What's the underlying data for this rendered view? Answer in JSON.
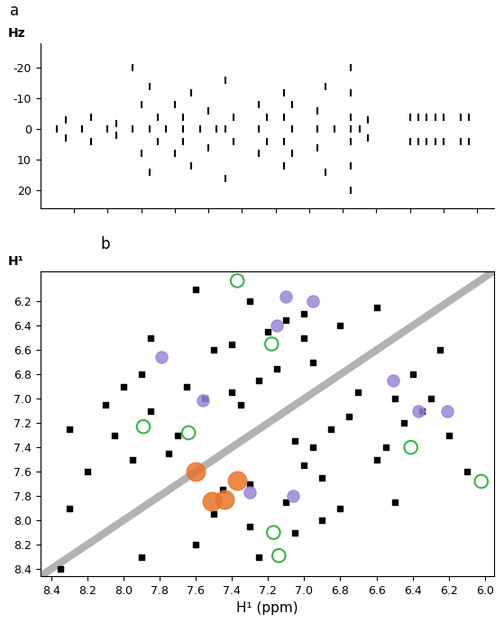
{
  "chart_data": [
    {
      "type": "scatter",
      "title": "a",
      "ylabel": "Hz",
      "xlim": [
        8.6,
        5.9
      ],
      "xticks": [
        8.4,
        8.2,
        8.0,
        7.8,
        7.6,
        7.4,
        7.2,
        7.0,
        6.8,
        6.6,
        6.4,
        6.2,
        6.0
      ],
      "ylim": [
        26,
        -28
      ],
      "yticks": [
        -20,
        -10,
        0,
        10,
        20
      ],
      "tick_labels": "y",
      "series": [
        {
          "type": "scatter",
          "color": "#000000",
          "marker": "dash",
          "x": [
            8.5,
            8.45,
            8.45,
            8.35,
            8.3,
            8.3,
            8.2,
            8.15,
            8.15,
            8.05,
            8.05,
            8.0,
            8.0,
            7.95,
            7.95,
            7.95,
            7.9,
            7.9,
            7.85,
            7.8,
            7.8,
            7.75,
            7.75,
            7.75,
            7.7,
            7.7,
            7.65,
            7.6,
            7.6,
            7.55,
            7.5,
            7.5,
            7.5,
            7.45,
            7.45,
            7.3,
            7.3,
            7.3,
            7.25,
            7.25,
            7.15,
            7.15,
            7.15,
            7.15,
            7.1,
            7.1,
            7.1,
            6.95,
            6.95,
            6.95,
            6.9,
            6.9,
            6.85,
            6.75,
            6.75,
            6.75,
            6.75,
            6.75,
            6.75,
            6.75,
            6.7,
            6.65,
            6.65,
            6.4,
            6.4,
            6.35,
            6.35,
            6.3,
            6.3,
            6.25,
            6.25,
            6.2,
            6.2,
            6.1,
            6.1,
            6.05,
            6.05
          ],
          "values": [
            0,
            -3,
            3,
            0,
            -4,
            4,
            0,
            -2,
            2,
            -20,
            0,
            -8,
            8,
            0,
            -14,
            14,
            -4,
            4,
            0,
            -8,
            8,
            0,
            -4,
            4,
            -12,
            12,
            0,
            -6,
            6,
            0,
            -16,
            0,
            16,
            -4,
            4,
            -8,
            0,
            8,
            -4,
            4,
            -12,
            -4,
            4,
            12,
            0,
            -8,
            8,
            0,
            -6,
            6,
            -14,
            14,
            0,
            -20,
            -12,
            -4,
            0,
            4,
            12,
            20,
            0,
            -3,
            3,
            -4,
            4,
            -4,
            4,
            -4,
            4,
            -4,
            4,
            -4,
            4,
            -4,
            4,
            -4,
            4
          ]
        }
      ]
    },
    {
      "type": "scatter",
      "title": "b",
      "ylabel": "H¹",
      "xlabel": "H¹ (ppm)",
      "xlim": [
        8.46,
        5.95
      ],
      "xticks": [
        8.4,
        8.2,
        8.0,
        7.8,
        7.6,
        7.4,
        7.2,
        7.0,
        6.8,
        6.6,
        6.4,
        6.2,
        6.0
      ],
      "ylim": [
        8.46,
        5.95
      ],
      "yticks": [
        6.2,
        6.4,
        6.6,
        6.8,
        7.0,
        7.2,
        7.4,
        7.6,
        7.8,
        8.0,
        8.2,
        8.4
      ],
      "series": [
        {
          "type": "line",
          "color": "#808080",
          "x": [
            8.46,
            5.95
          ],
          "values": [
            8.46,
            5.95
          ]
        },
        {
          "type": "scatter",
          "color": "#000000",
          "marker": "square",
          "x": [
            8.2,
            7.6,
            8.05,
            7.3,
            7.9,
            6.8,
            7.85,
            7.1,
            7.7,
            7.3,
            7.65,
            6.9,
            7.55,
            7.0,
            7.5,
            6.6,
            7.45,
            7.75,
            7.4,
            6.95,
            7.35,
            7.05,
            7.25,
            6.85,
            7.2,
            6.45,
            7.15,
            6.75,
            7.0,
            6.5,
            6.95,
            6.7,
            6.8,
            6.4,
            6.6,
            6.25,
            8.3,
            7.9,
            8.1,
            7.05,
            7.95,
            7.5,
            7.25,
            8.3,
            6.1,
            7.6,
            6.2,
            7.3,
            6.9,
            8.0,
            6.5,
            7.85,
            7.1,
            6.35,
            6.3,
            7.0,
            8.35,
            7.4,
            6.55
          ],
          "values": [
            7.6,
            8.2,
            7.3,
            8.05,
            6.8,
            7.9,
            7.1,
            7.85,
            7.3,
            7.7,
            6.9,
            7.65,
            7.0,
            7.55,
            6.6,
            7.5,
            7.75,
            7.45,
            6.95,
            7.4,
            7.05,
            7.35,
            6.85,
            7.25,
            6.45,
            7.2,
            6.75,
            7.15,
            6.5,
            7.0,
            6.7,
            6.95,
            6.4,
            6.8,
            6.25,
            6.6,
            7.9,
            8.3,
            7.05,
            8.1,
            7.5,
            7.95,
            8.3,
            7.25,
            7.6,
            6.1,
            7.3,
            6.2,
            8.0,
            6.9,
            7.85,
            6.5,
            6.35,
            7.1,
            7.0,
            6.3,
            8.4,
            6.55,
            7.4
          ]
        },
        {
          "type": "scatter",
          "color": "#9b86d6",
          "marker": "circle",
          "x": [
            7.1,
            6.95,
            7.15,
            7.79,
            7.56,
            6.51,
            6.37,
            6.21,
            7.06,
            7.3
          ],
          "values": [
            6.16,
            6.2,
            6.4,
            6.66,
            7.01,
            6.85,
            7.1,
            7.1,
            7.8,
            7.77
          ]
        },
        {
          "type": "scatter",
          "color": "#3cb44b",
          "marker": "open circle",
          "x": [
            7.37,
            7.18,
            7.89,
            7.64,
            6.41,
            6.02,
            7.17,
            7.14
          ],
          "values": [
            6.03,
            6.55,
            7.23,
            7.28,
            7.4,
            7.68,
            8.1,
            8.29
          ]
        },
        {
          "type": "scatter",
          "color": "#e8742a",
          "marker": "ellipse",
          "x": [
            7.6,
            7.37,
            7.44,
            7.51
          ],
          "values": [
            7.6,
            7.67,
            7.83,
            7.84
          ]
        }
      ]
    }
  ]
}
